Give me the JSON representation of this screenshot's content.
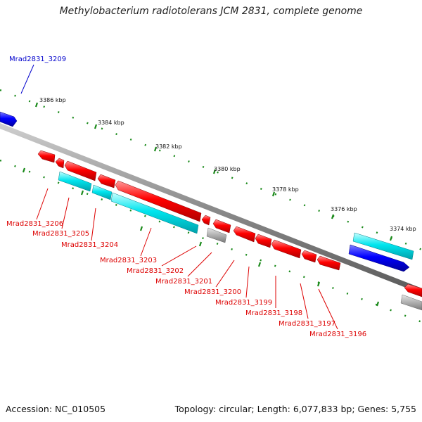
{
  "title": "Methylobacterium radiotolerans JCM 2831, complete genome",
  "footer": {
    "accession": "Accession: NC_010505",
    "summary": "Topology: circular; Length: 6,077,833 bp; Genes: 5,755"
  },
  "colors": {
    "forward_cds": "#0000ff",
    "reverse_cds": "#ff0000",
    "rna_or_feature": "#00e5ee",
    "other": "#b0b0b0",
    "backbone": "#8a8a8a",
    "ticks": "#1a8a1a"
  },
  "scale_ticks": [
    "3386 kbp",
    "3384 kbp",
    "3382 kbp",
    "3380 kbp",
    "3378 kbp",
    "3376 kbp",
    "3374 kbp"
  ],
  "gene_labels": [
    {
      "id": "Mrad2831_3209",
      "strand": "forward"
    },
    {
      "id": "Mrad2831_3206",
      "strand": "reverse"
    },
    {
      "id": "Mrad2831_3205",
      "strand": "reverse"
    },
    {
      "id": "Mrad2831_3204",
      "strand": "reverse"
    },
    {
      "id": "Mrad2831_3203",
      "strand": "reverse"
    },
    {
      "id": "Mrad2831_3202",
      "strand": "reverse"
    },
    {
      "id": "Mrad2831_3201",
      "strand": "reverse"
    },
    {
      "id": "Mrad2831_3200",
      "strand": "reverse"
    },
    {
      "id": "Mrad2831_3199",
      "strand": "reverse"
    },
    {
      "id": "Mrad2831_3198",
      "strand": "reverse"
    },
    {
      "id": "Mrad2831_3197",
      "strand": "reverse"
    },
    {
      "id": "Mrad2831_3196",
      "strand": "reverse"
    }
  ]
}
